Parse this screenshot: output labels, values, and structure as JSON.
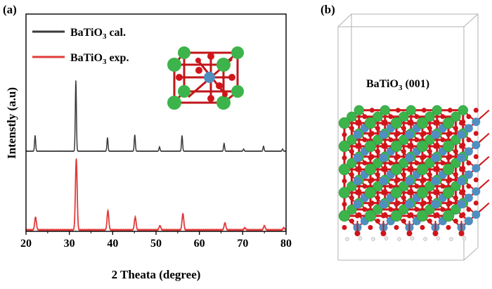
{
  "panel_a_label": "(a)",
  "panel_b_label": "(b)",
  "colors": {
    "calculated": "#3a3a3a",
    "experimental": "#e23b3b",
    "ba_atom": "#3cb44b",
    "ti_atom": "#4f8fc0",
    "o_atom": "#d0151a"
  },
  "chart_data": {
    "type": "line",
    "xlabel": "2 Theata (degree)",
    "ylabel": "Intenstly (a.u)",
    "xlim": [
      20,
      80
    ],
    "xticks": [
      20,
      30,
      40,
      50,
      60,
      70,
      80
    ],
    "legend_position": "top-left",
    "grid": false,
    "series": [
      {
        "name": "BaTiO3 cal.",
        "legend": {
          "base": "BaTiO",
          "sub": "3",
          "rest": " cal."
        },
        "color": "#3a3a3a",
        "peaks": [
          {
            "x": 22.1,
            "y": 22
          },
          {
            "x": 31.5,
            "y": 100
          },
          {
            "x": 38.8,
            "y": 19
          },
          {
            "x": 45.1,
            "y": 23
          },
          {
            "x": 50.8,
            "y": 6
          },
          {
            "x": 56.0,
            "y": 22
          },
          {
            "x": 65.7,
            "y": 11
          },
          {
            "x": 70.2,
            "y": 3
          },
          {
            "x": 74.8,
            "y": 7
          },
          {
            "x": 79.2,
            "y": 3
          }
        ]
      },
      {
        "name": "BaTiO3 exp.",
        "legend": {
          "base": "BaTiO",
          "sub": "3",
          "rest": " exp."
        },
        "color": "#e23b3b",
        "peaks": [
          {
            "x": 22.2,
            "y": 18
          },
          {
            "x": 31.6,
            "y": 100
          },
          {
            "x": 38.9,
            "y": 27
          },
          {
            "x": 45.2,
            "y": 18
          },
          {
            "x": 50.9,
            "y": 6
          },
          {
            "x": 56.2,
            "y": 23
          },
          {
            "x": 65.9,
            "y": 10
          },
          {
            "x": 70.5,
            "y": 3
          },
          {
            "x": 75.0,
            "y": 6
          },
          {
            "x": 79.5,
            "y": 3
          }
        ]
      }
    ]
  },
  "structure_label": {
    "base": "BaTiO",
    "sub": "3",
    "rest": " (001)"
  }
}
